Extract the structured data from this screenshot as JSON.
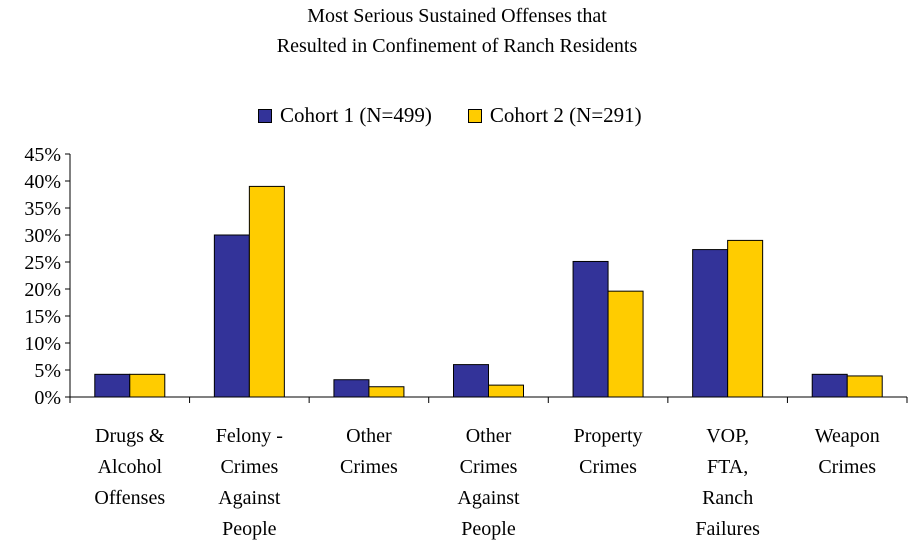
{
  "chart_data": {
    "type": "bar",
    "title_lines": [
      "Most Serious Sustained Offenses that",
      "Resulted in Confinement of Ranch Residents"
    ],
    "categories": [
      [
        "Drugs &",
        "Alcohol",
        "Offenses"
      ],
      [
        "Felony -",
        "Crimes",
        "Against",
        "People"
      ],
      [
        "Other",
        "Crimes"
      ],
      [
        "Other",
        "Crimes",
        "Against",
        "People"
      ],
      [
        "Property",
        "Crimes"
      ],
      [
        "VOP,",
        "FTA,",
        "Ranch",
        "Failures"
      ],
      [
        "Weapon",
        "Crimes"
      ]
    ],
    "series": [
      {
        "name": "Cohort 1 (N=499)",
        "color": "#333399",
        "values": [
          4.2,
          30.0,
          3.2,
          6.0,
          25.1,
          27.3,
          4.2
        ]
      },
      {
        "name": "Cohort 2 (N=291)",
        "color": "#FFCC00",
        "values": [
          4.2,
          39.0,
          1.9,
          2.2,
          19.6,
          29.0,
          3.9
        ]
      }
    ],
    "ylim": [
      0,
      45
    ],
    "yticks": [
      "0%",
      "5%",
      "10%",
      "15%",
      "20%",
      "25%",
      "30%",
      "35%",
      "40%",
      "45%"
    ],
    "legend_position": "top",
    "grid": false
  }
}
